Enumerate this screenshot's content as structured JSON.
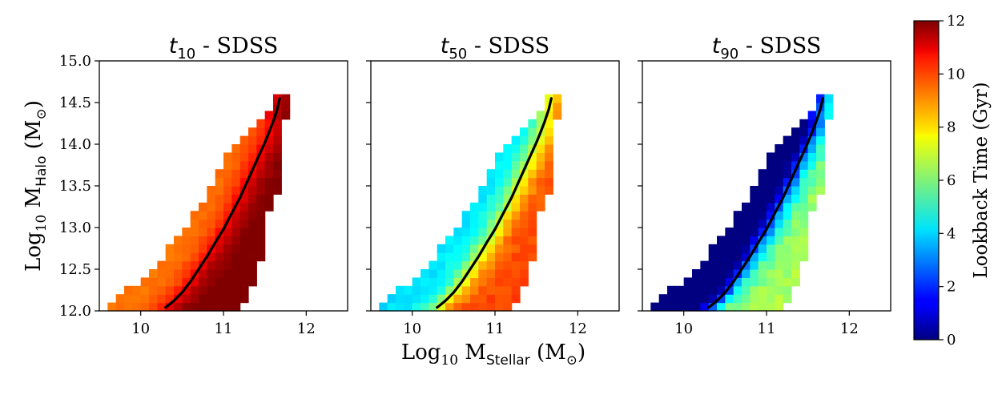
{
  "chart_data": {
    "type": "heatmap",
    "xlabel": {
      "prefix": "Log",
      "sub": "10",
      "mid": " M",
      "msub": "Stellar",
      "unit": " (M",
      "sun": "⊙",
      "close": ")"
    },
    "ylabel": {
      "prefix": "Log",
      "sub": "10",
      "mid": " M",
      "msub": "Halo",
      "unit": " (M",
      "sun": "⊙",
      "close": ")"
    },
    "xlim": [
      9.5,
      12.5
    ],
    "ylim": [
      12.0,
      15.0
    ],
    "xticks": [
      "10",
      "11",
      "12"
    ],
    "yticks": [
      "12.0",
      "12.5",
      "13.0",
      "13.5",
      "14.0",
      "14.5",
      "15.0"
    ],
    "bin_width": 0.1,
    "panels": [
      {
        "title_var": "t",
        "title_sub": "10",
        "title_rest": " - SDSS",
        "base": 10.6,
        "gain": 1.5,
        "noise": 0.12
      },
      {
        "title_var": "t",
        "title_sub": "50",
        "title_rest": " - SDSS",
        "base": 6.9,
        "gain": 2.8,
        "noise": 0.25
      },
      {
        "title_var": "t",
        "title_sub": "90",
        "title_rest": " - SDSS",
        "base": 2.2,
        "gain": 4.3,
        "noise": 0.4
      }
    ],
    "coverage_rows": [
      {
        "y": 12.0,
        "xmin": 9.6,
        "xmax": 11.1
      },
      {
        "y": 12.1,
        "xmin": 9.7,
        "xmax": 11.2
      },
      {
        "y": 12.2,
        "xmin": 9.8,
        "xmax": 11.2
      },
      {
        "y": 12.3,
        "xmin": 10.0,
        "xmax": 11.3
      },
      {
        "y": 12.4,
        "xmin": 10.1,
        "xmax": 11.3
      },
      {
        "y": 12.5,
        "xmin": 10.2,
        "xmax": 11.3
      },
      {
        "y": 12.6,
        "xmin": 10.3,
        "xmax": 11.4
      },
      {
        "y": 12.7,
        "xmin": 10.3,
        "xmax": 11.4
      },
      {
        "y": 12.8,
        "xmin": 10.4,
        "xmax": 11.4
      },
      {
        "y": 12.9,
        "xmin": 10.5,
        "xmax": 11.4
      },
      {
        "y": 13.0,
        "xmin": 10.6,
        "xmax": 11.4
      },
      {
        "y": 13.1,
        "xmin": 10.6,
        "xmax": 11.4
      },
      {
        "y": 13.2,
        "xmin": 10.7,
        "xmax": 11.5
      },
      {
        "y": 13.3,
        "xmin": 10.8,
        "xmax": 11.5
      },
      {
        "y": 13.4,
        "xmin": 10.8,
        "xmax": 11.6
      },
      {
        "y": 13.5,
        "xmin": 10.9,
        "xmax": 11.6
      },
      {
        "y": 13.6,
        "xmin": 10.9,
        "xmax": 11.6
      },
      {
        "y": 13.7,
        "xmin": 11.0,
        "xmax": 11.6
      },
      {
        "y": 13.8,
        "xmin": 11.0,
        "xmax": 11.6
      },
      {
        "y": 13.9,
        "xmin": 11.1,
        "xmax": 11.6
      },
      {
        "y": 14.0,
        "xmin": 11.2,
        "xmax": 11.6
      },
      {
        "y": 14.1,
        "xmin": 11.3,
        "xmax": 11.6
      },
      {
        "y": 14.2,
        "xmin": 11.4,
        "xmax": 11.6
      },
      {
        "y": 14.3,
        "xmin": 11.5,
        "xmax": 11.7
      },
      {
        "y": 14.4,
        "xmin": 11.6,
        "xmax": 11.7
      },
      {
        "y": 14.5,
        "xmin": 11.6,
        "xmax": 11.7
      }
    ],
    "median_line": {
      "x": [
        10.3,
        10.4,
        10.5,
        10.6,
        10.7,
        10.8,
        10.9,
        11.0,
        11.1,
        11.2,
        11.3,
        11.4,
        11.5,
        11.55,
        11.6,
        11.65,
        11.68
      ],
      "y": [
        12.04,
        12.12,
        12.22,
        12.35,
        12.5,
        12.65,
        12.82,
        12.98,
        13.17,
        13.36,
        13.58,
        13.8,
        14.02,
        14.14,
        14.27,
        14.42,
        14.55
      ]
    },
    "colorbar": {
      "label": "Lookback Time (Gyr)",
      "range": [
        0,
        12
      ],
      "ticks": [
        "0",
        "2",
        "4",
        "6",
        "8",
        "10",
        "12"
      ],
      "colormap": "jet"
    }
  }
}
